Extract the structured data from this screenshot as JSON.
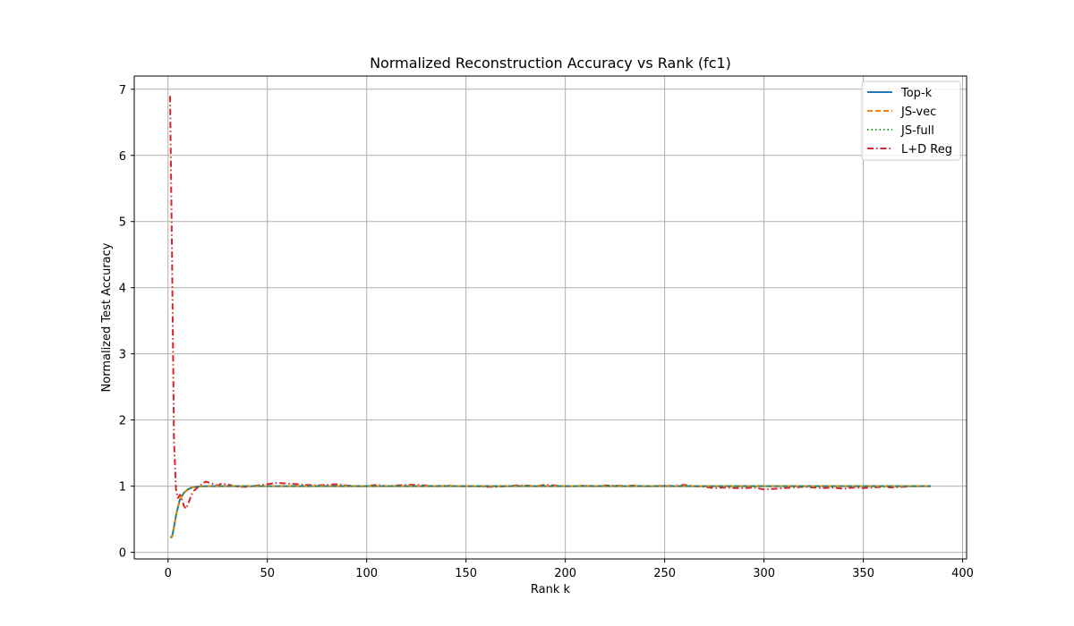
{
  "chart_data": {
    "type": "line",
    "title": "Normalized Reconstruction Accuracy vs Rank (fc1)",
    "xlabel": "Rank k",
    "ylabel": "Normalized Test Accuracy",
    "xlim": [
      -17,
      402
    ],
    "ylim": [
      -0.1,
      7.2
    ],
    "xticks": [
      0,
      50,
      100,
      150,
      200,
      250,
      300,
      350,
      400
    ],
    "yticks": [
      0,
      1,
      2,
      3,
      4,
      5,
      6,
      7
    ],
    "grid": true,
    "legend_position": "top-right",
    "series": [
      {
        "name": "Top-k",
        "color": "#1f77b4",
        "dash": "solid",
        "points": [
          [
            1,
            0.23
          ],
          [
            2,
            0.23
          ],
          [
            3,
            0.38
          ],
          [
            4,
            0.55
          ],
          [
            5,
            0.68
          ],
          [
            6,
            0.8
          ],
          [
            8,
            0.9
          ],
          [
            10,
            0.95
          ],
          [
            12,
            0.98
          ],
          [
            15,
            0.995
          ],
          [
            20,
            1.0
          ],
          [
            30,
            1.0
          ],
          [
            60,
            1.0
          ],
          [
            100,
            1.0
          ],
          [
            150,
            1.0
          ],
          [
            200,
            1.0
          ],
          [
            250,
            1.0
          ],
          [
            300,
            1.0
          ],
          [
            350,
            1.0
          ],
          [
            384,
            1.0
          ]
        ]
      },
      {
        "name": "JS-vec",
        "color": "#ff7f0e",
        "dash": "dashed",
        "points": [
          [
            1,
            0.23
          ],
          [
            2,
            0.23
          ],
          [
            3,
            0.38
          ],
          [
            4,
            0.55
          ],
          [
            5,
            0.68
          ],
          [
            6,
            0.8
          ],
          [
            8,
            0.9
          ],
          [
            10,
            0.95
          ],
          [
            12,
            0.98
          ],
          [
            15,
            0.995
          ],
          [
            20,
            1.0
          ],
          [
            30,
            1.0
          ],
          [
            60,
            1.0
          ],
          [
            100,
            1.0
          ],
          [
            150,
            1.0
          ],
          [
            200,
            1.0
          ],
          [
            250,
            1.0
          ],
          [
            300,
            1.0
          ],
          [
            350,
            1.0
          ],
          [
            384,
            1.0
          ]
        ]
      },
      {
        "name": "JS-full",
        "color": "#2ca02c",
        "dash": "dotted",
        "points": [
          [
            1,
            0.23
          ],
          [
            2,
            0.23
          ],
          [
            3,
            0.38
          ],
          [
            4,
            0.55
          ],
          [
            5,
            0.68
          ],
          [
            6,
            0.8
          ],
          [
            8,
            0.9
          ],
          [
            10,
            0.95
          ],
          [
            12,
            0.98
          ],
          [
            15,
            0.995
          ],
          [
            20,
            1.0
          ],
          [
            30,
            1.0
          ],
          [
            60,
            1.0
          ],
          [
            100,
            1.0
          ],
          [
            150,
            1.0
          ],
          [
            200,
            1.0
          ],
          [
            250,
            1.0
          ],
          [
            300,
            1.0
          ],
          [
            350,
            1.0
          ],
          [
            384,
            1.0
          ]
        ]
      },
      {
        "name": "L+D Reg",
        "color": "#d62728",
        "dash": "dashdot",
        "points": [
          [
            1,
            6.9
          ],
          [
            2,
            4.5
          ],
          [
            3,
            1.7
          ],
          [
            4,
            0.95
          ],
          [
            5,
            0.82
          ],
          [
            6,
            0.87
          ],
          [
            7,
            0.8
          ],
          [
            8,
            0.7
          ],
          [
            9,
            0.66
          ],
          [
            10,
            0.72
          ],
          [
            11,
            0.8
          ],
          [
            12,
            0.88
          ],
          [
            13,
            0.93
          ],
          [
            15,
            0.98
          ],
          [
            17,
            1.03
          ],
          [
            19,
            1.07
          ],
          [
            21,
            1.05
          ],
          [
            23,
            1.03
          ],
          [
            25,
            1.01
          ],
          [
            27,
            1.04
          ],
          [
            29,
            1.03
          ],
          [
            31,
            1.02
          ],
          [
            33,
            1.0
          ],
          [
            36,
            0.99
          ],
          [
            40,
            0.99
          ],
          [
            45,
            1.01
          ],
          [
            50,
            1.03
          ],
          [
            55,
            1.05
          ],
          [
            60,
            1.04
          ],
          [
            65,
            1.03
          ],
          [
            70,
            1.02
          ],
          [
            75,
            1.01
          ],
          [
            80,
            1.02
          ],
          [
            85,
            1.03
          ],
          [
            90,
            1.01
          ],
          [
            95,
            1.0
          ],
          [
            100,
            1.0
          ],
          [
            105,
            1.02
          ],
          [
            110,
            1.0
          ],
          [
            115,
            1.01
          ],
          [
            120,
            1.02
          ],
          [
            125,
            1.02
          ],
          [
            130,
            1.01
          ],
          [
            135,
            1.0
          ],
          [
            140,
            1.01
          ],
          [
            145,
            1.0
          ],
          [
            150,
            1.0
          ],
          [
            155,
            1.0
          ],
          [
            160,
            0.99
          ],
          [
            165,
            0.99
          ],
          [
            170,
            1.0
          ],
          [
            175,
            1.01
          ],
          [
            180,
            1.01
          ],
          [
            185,
            1.0
          ],
          [
            190,
            1.02
          ],
          [
            195,
            1.01
          ],
          [
            200,
            1.0
          ],
          [
            205,
            1.0
          ],
          [
            210,
            1.01
          ],
          [
            215,
            1.0
          ],
          [
            220,
            1.01
          ],
          [
            225,
            1.01
          ],
          [
            230,
            1.0
          ],
          [
            235,
            1.01
          ],
          [
            240,
            1.0
          ],
          [
            245,
            1.0
          ],
          [
            250,
            1.01
          ],
          [
            255,
            1.0
          ],
          [
            260,
            1.02
          ],
          [
            265,
            1.0
          ],
          [
            270,
            0.99
          ],
          [
            275,
            0.97
          ],
          [
            280,
            0.98
          ],
          [
            285,
            0.97
          ],
          [
            290,
            0.97
          ],
          [
            295,
            0.98
          ],
          [
            300,
            0.95
          ],
          [
            305,
            0.96
          ],
          [
            310,
            0.97
          ],
          [
            315,
            0.98
          ],
          [
            320,
            0.99
          ],
          [
            325,
            0.98
          ],
          [
            330,
            0.97
          ],
          [
            335,
            0.98
          ],
          [
            340,
            0.96
          ],
          [
            345,
            0.98
          ],
          [
            350,
            0.97
          ],
          [
            355,
            0.98
          ],
          [
            360,
            0.99
          ],
          [
            365,
            0.98
          ],
          [
            370,
            0.99
          ],
          [
            375,
            1.0
          ],
          [
            384,
            1.0
          ]
        ]
      }
    ]
  }
}
